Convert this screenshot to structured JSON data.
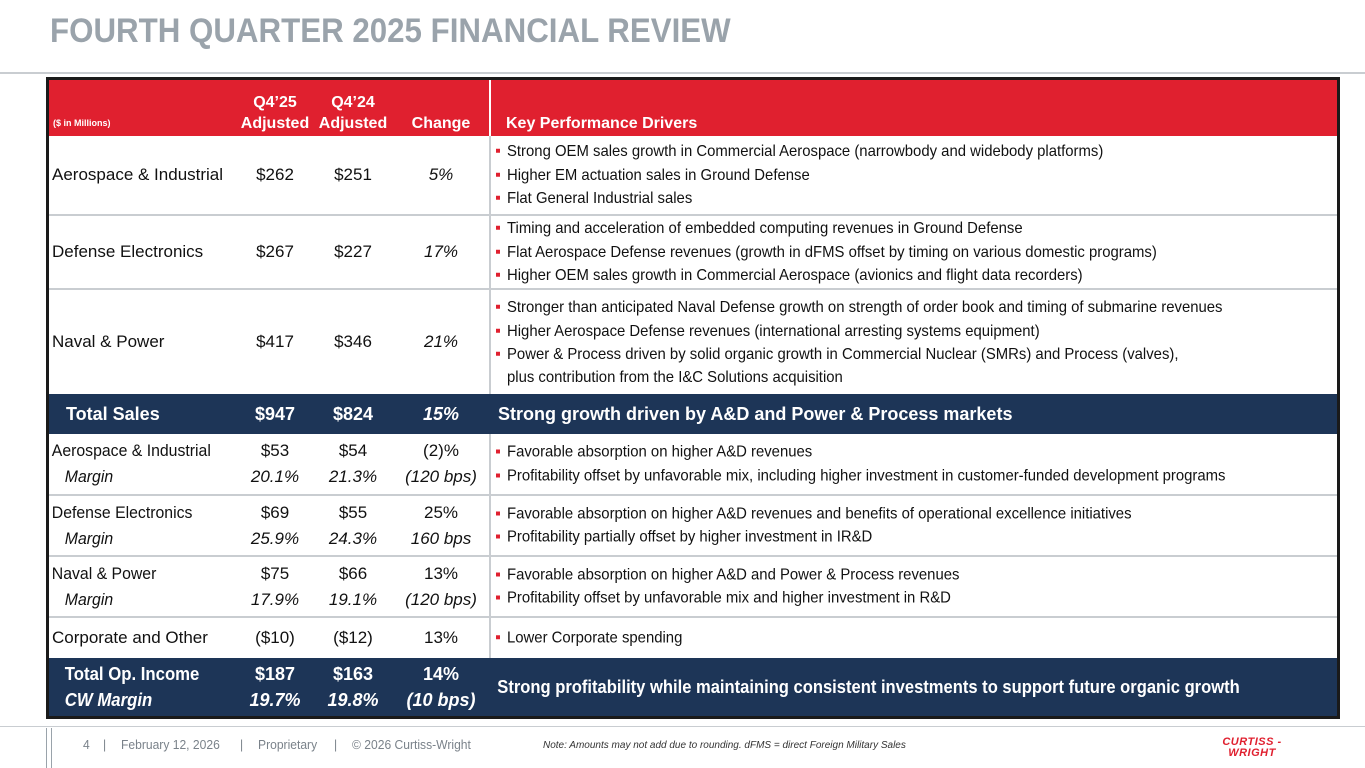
{
  "title": "FOURTH QUARTER 2025 FINANCIAL REVIEW",
  "table": {
    "units": "($ in Millions)",
    "col_q25_line1": "Q4’25",
    "col_q25_line2": "Adjusted",
    "col_q24_line1": "Q4’24",
    "col_q24_line2": "Adjusted",
    "col_change": "Change",
    "col_drivers": "Key Performance Drivers",
    "sales_rows": [
      {
        "name": "Aerospace & Industrial",
        "q25": "$262",
        "q24": "$251",
        "change": "5%",
        "drivers": [
          "Strong OEM sales growth in Commercial Aerospace (narrowbody and widebody platforms)",
          "Higher EM actuation sales in Ground Defense",
          "Flat General Industrial sales"
        ]
      },
      {
        "name": "Defense Electronics",
        "q25": "$267",
        "q24": "$227",
        "change": "17%",
        "drivers": [
          "Timing and acceleration of embedded computing revenues in Ground Defense",
          "Flat Aerospace Defense revenues (growth in dFMS offset by timing on various domestic programs)",
          "Higher OEM sales growth in Commercial Aerospace (avionics and flight data recorders)"
        ]
      },
      {
        "name": "Naval & Power",
        "q25": "$417",
        "q24": "$346",
        "change": "21%",
        "drivers": [
          "Stronger than anticipated Naval Defense growth on strength of order book and timing of submarine revenues",
          "Higher Aerospace Defense revenues (international arresting systems equipment)",
          "Power & Process driven by solid organic growth in Commercial Nuclear (SMRs) and Process (valves),"
        ],
        "driver_continuation": "plus contribution from the I&C Solutions acquisition"
      }
    ],
    "total_sales": {
      "name": "Total Sales",
      "q25": "$947",
      "q24": "$824",
      "change": "15%",
      "driver": "Strong growth driven by A&D and Power & Process markets"
    },
    "income_rows": [
      {
        "name": "Aerospace & Industrial",
        "sub": "Margin",
        "q25": "$53",
        "q25_margin": "20.1%",
        "q24": "$54",
        "q24_margin": "21.3%",
        "change": "(2)%",
        "change_margin": "(120 bps)",
        "drivers": [
          "Favorable absorption on higher A&D revenues",
          "Profitability offset by unfavorable mix, including higher investment in customer-funded development programs"
        ]
      },
      {
        "name": "Defense Electronics",
        "sub": "Margin",
        "q25": "$69",
        "q25_margin": "25.9%",
        "q24": "$55",
        "q24_margin": "24.3%",
        "change": "25%",
        "change_margin": "160 bps",
        "drivers": [
          "Favorable absorption on higher A&D revenues and benefits of operational excellence initiatives",
          "Profitability partially offset by higher investment in IR&D"
        ]
      },
      {
        "name": "Naval & Power",
        "sub": "Margin",
        "q25": "$75",
        "q25_margin": "17.9%",
        "q24": "$66",
        "q24_margin": "19.1%",
        "change": "13%",
        "change_margin": "(120 bps)",
        "drivers": [
          "Favorable absorption on higher A&D and Power & Process revenues",
          "Profitability offset by unfavorable mix and higher investment in R&D"
        ]
      }
    ],
    "corporate": {
      "name": "Corporate and Other",
      "q25": "($10)",
      "q24": "($12)",
      "change": "13%",
      "driver": "Lower Corporate spending"
    },
    "total_op": {
      "name": "Total Op. Income",
      "sub": "CW Margin",
      "q25": "$187",
      "q25_margin": "19.7%",
      "q24": "$163",
      "q24_margin": "19.8%",
      "change": "14%",
      "change_margin": "(10 bps)",
      "driver": "Strong profitability while maintaining consistent investments to support future organic growth"
    }
  },
  "footer": {
    "page": "4",
    "date": "February 12, 2026",
    "classification": "Proprietary",
    "copyright": "© 2026 Curtiss-Wright",
    "note": "Note: Amounts may not add due to rounding. dFMS = direct Foreign Military Sales",
    "logo_line1": "CURTISS -",
    "logo_line2": "WRIGHT"
  },
  "colors": {
    "accent_red": "#e0202f",
    "navy": "#1d3557",
    "title_gray": "#9aa3ab"
  }
}
